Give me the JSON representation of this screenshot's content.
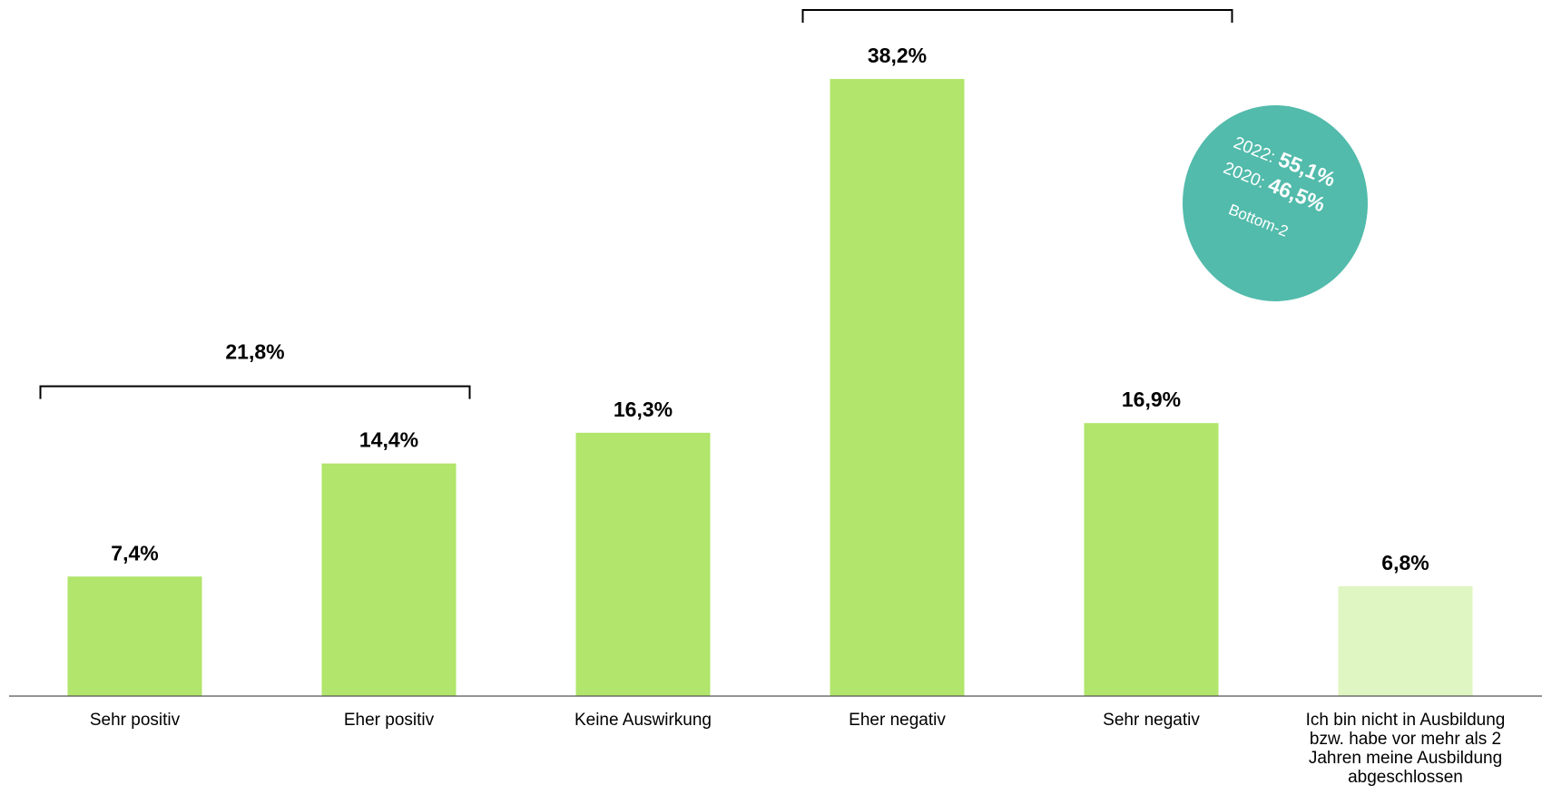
{
  "chart_data": {
    "type": "bar",
    "categories": [
      "Sehr positiv",
      "Eher positiv",
      "Keine Auswirkung",
      "Eher negativ",
      "Sehr negativ",
      "Ich bin nicht in Ausbildung bzw. habe vor mehr als 2 Jahren meine Ausbildung abgeschlossen"
    ],
    "values": [
      7.4,
      14.4,
      16.3,
      38.2,
      16.9,
      6.8
    ],
    "value_labels": [
      "7,4%",
      "14,4%",
      "16,3%",
      "38,2%",
      "16,9%",
      "6,8%"
    ],
    "colors": [
      "#b1e56b",
      "#b1e56b",
      "#b1e56b",
      "#b1e56b",
      "#b1e56b",
      "#dff5c2"
    ],
    "ylim": [
      0,
      40
    ],
    "brackets": [
      {
        "from": 0,
        "to": 1,
        "value": 21.8,
        "label": "21,8%"
      },
      {
        "from": 3,
        "to": 4
      }
    ],
    "callout": {
      "color": "#52bbab",
      "items": [
        {
          "year": "2022:",
          "value": 55.1,
          "label": "55,1%"
        },
        {
          "year": "2020:",
          "value": 46.5,
          "label": "46,5%"
        }
      ],
      "note": "Bottom-2"
    }
  }
}
